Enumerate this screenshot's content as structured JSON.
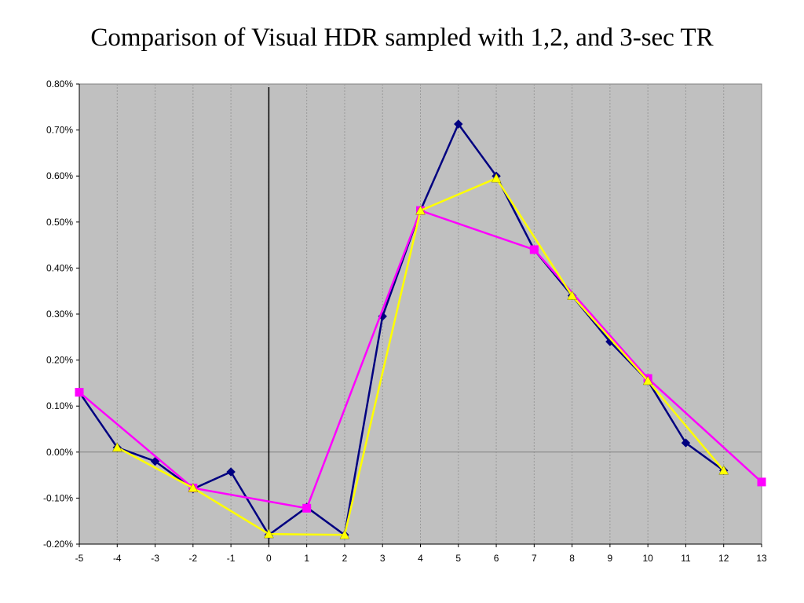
{
  "chart_data": {
    "type": "line",
    "title": "Comparison of Visual HDR sampled with 1,2, and 3-sec TR",
    "xlabel": "",
    "ylabel": "",
    "xlim": [
      -5,
      13
    ],
    "ylim": [
      -0.002,
      0.008
    ],
    "x_ticks": [
      "-5",
      "-4",
      "-3",
      "-2",
      "-1",
      "0",
      "1",
      "2",
      "3",
      "4",
      "5",
      "6",
      "7",
      "8",
      "9",
      "10",
      "11",
      "12",
      "13"
    ],
    "y_ticks": [
      "-0.20%",
      "-0.10%",
      "0.00%",
      "0.10%",
      "0.20%",
      "0.30%",
      "0.40%",
      "0.50%",
      "0.60%",
      "0.70%",
      "0.80%"
    ],
    "grid": true,
    "legend": "none",
    "plot_background": "#c0c0c0",
    "vertical_marker_x": 0,
    "series": [
      {
        "color": "#000080",
        "marker": "diamond",
        "x": [
          -5,
          -4,
          -3,
          -2,
          -1,
          0,
          1,
          2,
          3,
          4,
          5,
          6,
          7,
          8,
          9,
          10,
          11,
          12
        ],
        "y": [
          0.0013,
          0.0001,
          -0.0002,
          -0.0008,
          -0.00043,
          -0.0018,
          -0.0012,
          -0.0018,
          0.00295,
          0.00525,
          0.00713,
          0.006,
          0.0044,
          0.0034,
          0.0024,
          0.00155,
          0.0002,
          -0.0004
        ]
      },
      {
        "color": "#ff00ff",
        "marker": "square",
        "x": [
          -5,
          -2,
          1,
          4,
          7,
          10,
          13
        ],
        "y": [
          0.0013,
          -0.00078,
          -0.00122,
          0.00525,
          0.0044,
          0.0016,
          -0.00065
        ]
      },
      {
        "color": "#ffff00",
        "marker": "triangle",
        "x": [
          -4,
          -2,
          0,
          2,
          4,
          6,
          8,
          10,
          12
        ],
        "y": [
          0.0001,
          -0.00078,
          -0.00178,
          -0.0018,
          0.00525,
          0.00595,
          0.0034,
          0.00155,
          -0.0004
        ]
      }
    ]
  }
}
